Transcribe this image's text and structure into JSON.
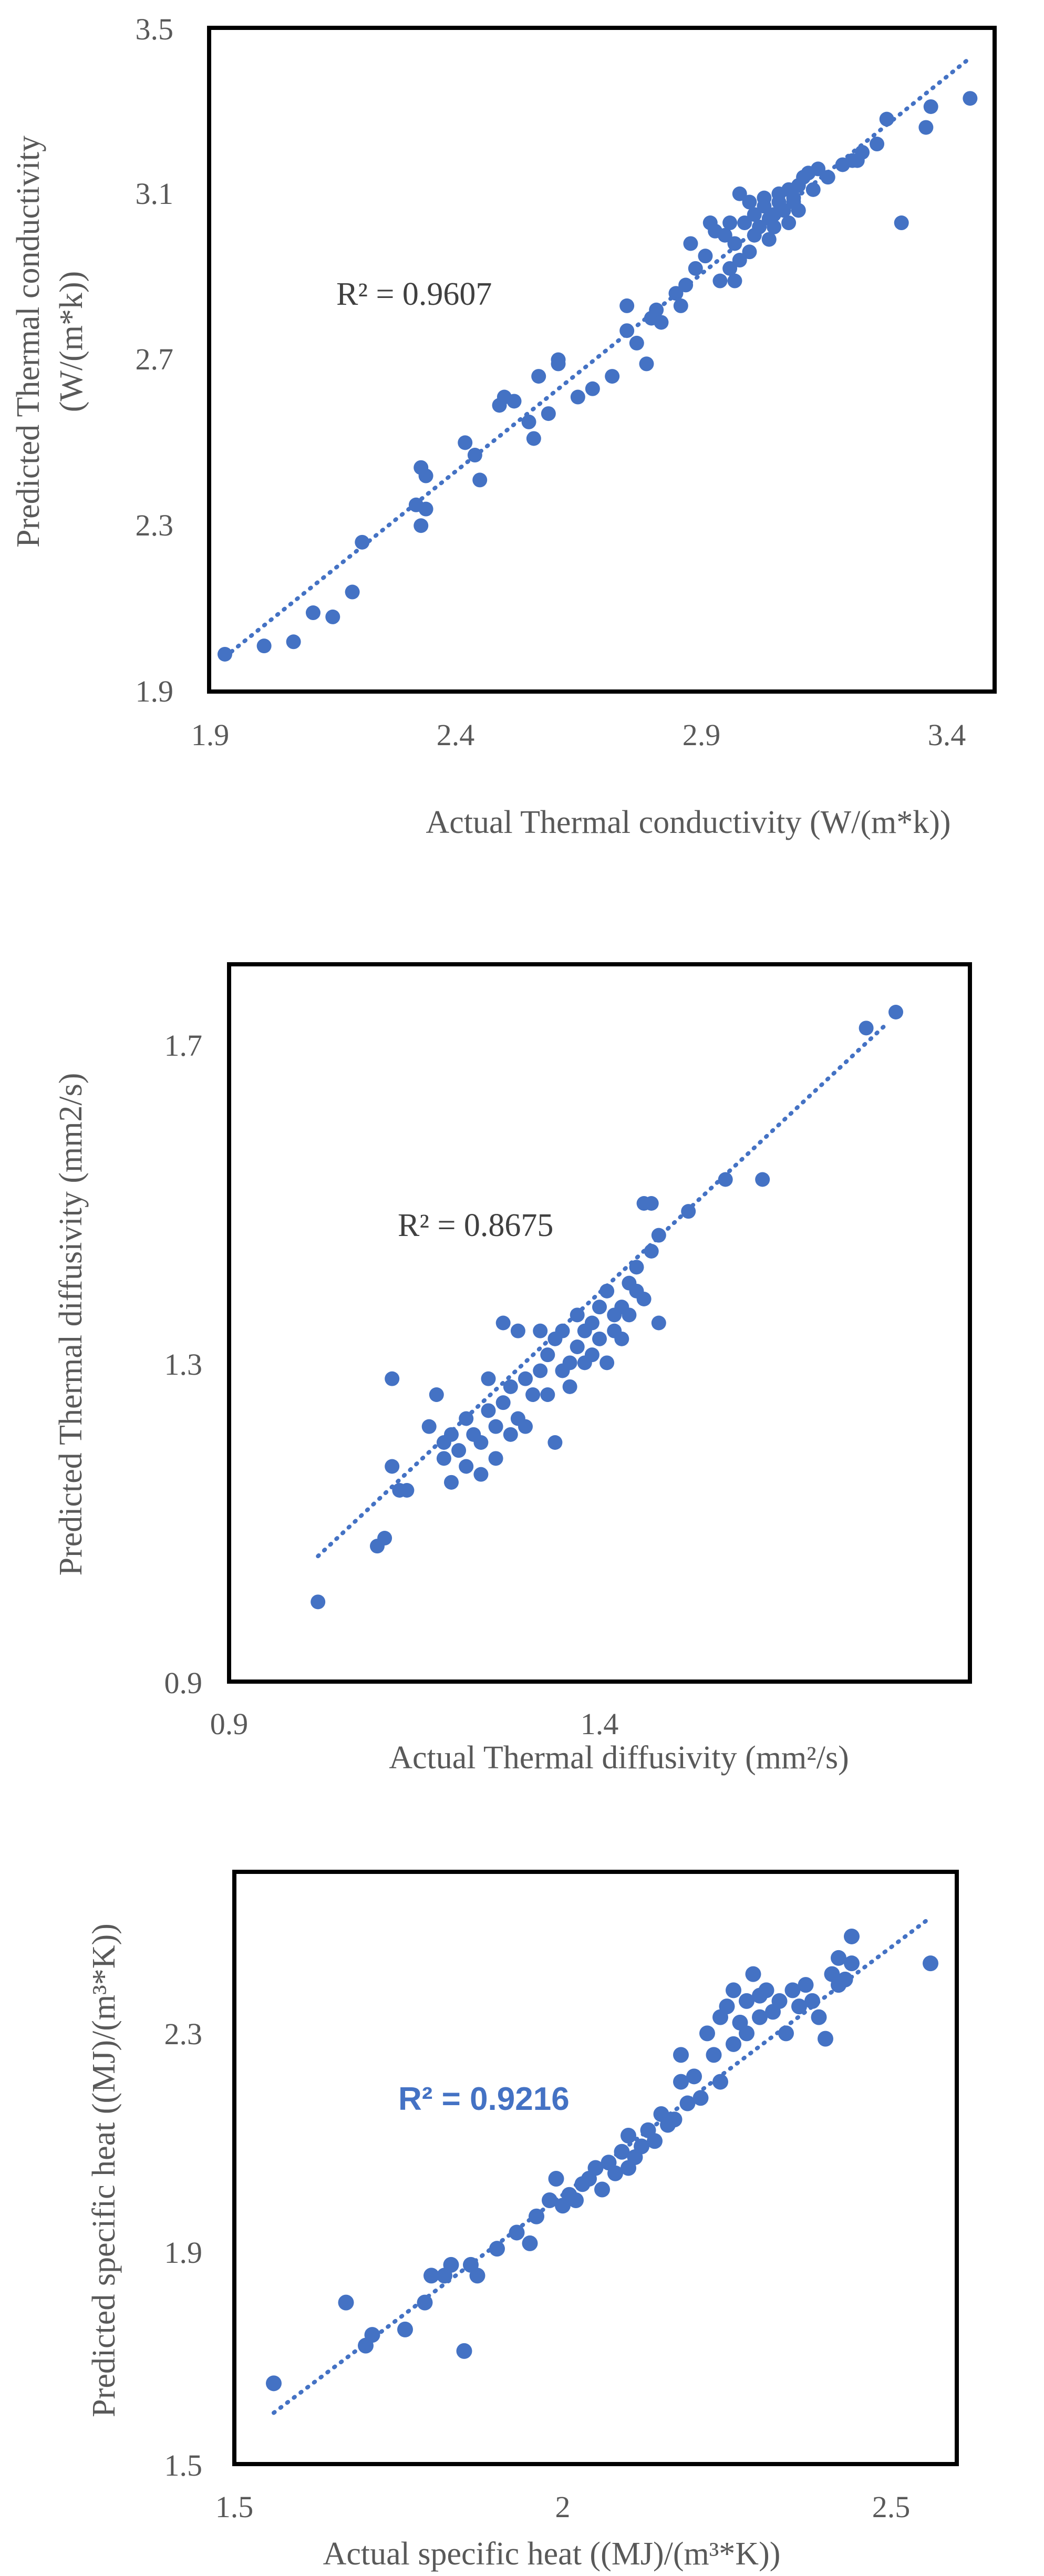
{
  "accent_color": "#4472C4",
  "chart_data": [
    {
      "type": "scatter",
      "xlabel": "Actual Thermal conductivity (W/(m*k))",
      "ylabel_line1": "Predicted Thermal conductivity",
      "ylabel_line2": "(W/(m*k))",
      "xlim": [
        1.9,
        3.5
      ],
      "ylim": [
        1.9,
        3.5
      ],
      "x_ticks": [
        "1.9",
        "2.4",
        "2.9",
        "3.4"
      ],
      "y_ticks": [
        "1.9",
        "2.3",
        "2.7",
        "3.1",
        "3.5"
      ],
      "r2_label": "R² = 0.9607",
      "trendline": {
        "x_start": 1.93,
        "x_end": 3.45,
        "slope": 0.95,
        "intercept": 0.15
      },
      "points": [
        [
          1.93,
          1.99
        ],
        [
          2.01,
          2.01
        ],
        [
          2.07,
          2.02
        ],
        [
          2.11,
          2.09
        ],
        [
          2.15,
          2.08
        ],
        [
          2.19,
          2.14
        ],
        [
          2.21,
          2.26
        ],
        [
          2.32,
          2.35
        ],
        [
          2.34,
          2.34
        ],
        [
          2.33,
          2.3
        ],
        [
          2.33,
          2.44
        ],
        [
          2.34,
          2.42
        ],
        [
          2.45,
          2.41
        ],
        [
          2.44,
          2.47
        ],
        [
          2.42,
          2.5
        ],
        [
          2.49,
          2.59
        ],
        [
          2.5,
          2.61
        ],
        [
          2.52,
          2.6
        ],
        [
          2.55,
          2.55
        ],
        [
          2.56,
          2.51
        ],
        [
          2.57,
          2.66
        ],
        [
          2.59,
          2.57
        ],
        [
          2.61,
          2.69
        ],
        [
          2.61,
          2.7
        ],
        [
          2.65,
          2.61
        ],
        [
          2.68,
          2.63
        ],
        [
          2.72,
          2.66
        ],
        [
          2.75,
          2.83
        ],
        [
          2.75,
          2.77
        ],
        [
          2.77,
          2.74
        ],
        [
          2.79,
          2.69
        ],
        [
          2.8,
          2.8
        ],
        [
          2.81,
          2.82
        ],
        [
          2.82,
          2.79
        ],
        [
          2.85,
          2.86
        ],
        [
          2.86,
          2.83
        ],
        [
          2.87,
          2.88
        ],
        [
          2.88,
          2.98
        ],
        [
          2.89,
          2.92
        ],
        [
          2.91,
          2.95
        ],
        [
          2.92,
          3.03
        ],
        [
          2.93,
          3.01
        ],
        [
          2.94,
          2.89
        ],
        [
          2.95,
          3.0
        ],
        [
          2.96,
          3.03
        ],
        [
          2.96,
          2.92
        ],
        [
          2.97,
          2.89
        ],
        [
          2.97,
          2.98
        ],
        [
          2.98,
          3.1
        ],
        [
          2.98,
          2.94
        ],
        [
          2.99,
          3.03
        ],
        [
          3.0,
          2.96
        ],
        [
          3.0,
          3.08
        ],
        [
          3.01,
          3.0
        ],
        [
          3.01,
          3.05
        ],
        [
          3.02,
          3.02
        ],
        [
          3.03,
          3.07
        ],
        [
          3.03,
          3.09
        ],
        [
          3.04,
          3.04
        ],
        [
          3.04,
          2.99
        ],
        [
          3.05,
          3.05
        ],
        [
          3.05,
          3.02
        ],
        [
          3.06,
          3.08
        ],
        [
          3.06,
          3.1
        ],
        [
          3.07,
          3.06
        ],
        [
          3.08,
          3.11
        ],
        [
          3.08,
          3.03
        ],
        [
          3.09,
          3.08
        ],
        [
          3.09,
          3.09
        ],
        [
          3.1,
          3.12
        ],
        [
          3.1,
          3.06
        ],
        [
          3.11,
          3.14
        ],
        [
          3.12,
          3.15
        ],
        [
          3.13,
          3.11
        ],
        [
          3.14,
          3.16
        ],
        [
          3.16,
          3.14
        ],
        [
          3.19,
          3.17
        ],
        [
          3.21,
          3.18
        ],
        [
          3.22,
          3.18
        ],
        [
          3.23,
          3.2
        ],
        [
          3.26,
          3.22
        ],
        [
          3.28,
          3.28
        ],
        [
          3.31,
          3.03
        ],
        [
          3.36,
          3.26
        ],
        [
          3.37,
          3.31
        ],
        [
          3.45,
          3.33
        ]
      ]
    },
    {
      "type": "scatter",
      "xlabel": "Actual Thermal diffusivity (mm²/s)",
      "ylabel": "Predicted Thermal diffusivity (mm2/s)",
      "xlim": [
        0.9,
        1.9
      ],
      "ylim": [
        0.9,
        1.8
      ],
      "x_ticks": [
        "0.9",
        "1.4"
      ],
      "y_ticks": [
        "0.9",
        "1.3",
        "1.7"
      ],
      "r2_label": "R² = 0.8675",
      "trendline": {
        "x_start": 1.02,
        "x_end": 1.79,
        "slope": 0.87,
        "intercept": 0.17
      },
      "points": [
        [
          1.02,
          1.0
        ],
        [
          1.1,
          1.07
        ],
        [
          1.11,
          1.08
        ],
        [
          1.12,
          1.17
        ],
        [
          1.12,
          1.28
        ],
        [
          1.13,
          1.14
        ],
        [
          1.14,
          1.14
        ],
        [
          1.17,
          1.22
        ],
        [
          1.18,
          1.26
        ],
        [
          1.19,
          1.18
        ],
        [
          1.19,
          1.2
        ],
        [
          1.2,
          1.15
        ],
        [
          1.2,
          1.21
        ],
        [
          1.21,
          1.19
        ],
        [
          1.22,
          1.23
        ],
        [
          1.22,
          1.17
        ],
        [
          1.23,
          1.21
        ],
        [
          1.24,
          1.2
        ],
        [
          1.24,
          1.16
        ],
        [
          1.25,
          1.24
        ],
        [
          1.25,
          1.28
        ],
        [
          1.26,
          1.18
        ],
        [
          1.26,
          1.22
        ],
        [
          1.27,
          1.25
        ],
        [
          1.27,
          1.35
        ],
        [
          1.28,
          1.21
        ],
        [
          1.28,
          1.27
        ],
        [
          1.29,
          1.23
        ],
        [
          1.29,
          1.34
        ],
        [
          1.3,
          1.28
        ],
        [
          1.3,
          1.22
        ],
        [
          1.31,
          1.26
        ],
        [
          1.32,
          1.34
        ],
        [
          1.32,
          1.29
        ],
        [
          1.33,
          1.26
        ],
        [
          1.33,
          1.31
        ],
        [
          1.34,
          1.2
        ],
        [
          1.34,
          1.33
        ],
        [
          1.35,
          1.29
        ],
        [
          1.35,
          1.34
        ],
        [
          1.36,
          1.3
        ],
        [
          1.36,
          1.27
        ],
        [
          1.37,
          1.32
        ],
        [
          1.37,
          1.36
        ],
        [
          1.38,
          1.3
        ],
        [
          1.38,
          1.34
        ],
        [
          1.39,
          1.35
        ],
        [
          1.39,
          1.31
        ],
        [
          1.4,
          1.37
        ],
        [
          1.4,
          1.33
        ],
        [
          1.41,
          1.3
        ],
        [
          1.41,
          1.39
        ],
        [
          1.42,
          1.36
        ],
        [
          1.42,
          1.34
        ],
        [
          1.43,
          1.37
        ],
        [
          1.43,
          1.33
        ],
        [
          1.44,
          1.4
        ],
        [
          1.44,
          1.36
        ],
        [
          1.45,
          1.39
        ],
        [
          1.45,
          1.42
        ],
        [
          1.46,
          1.38
        ],
        [
          1.46,
          1.5
        ],
        [
          1.47,
          1.5
        ],
        [
          1.47,
          1.44
        ],
        [
          1.48,
          1.35
        ],
        [
          1.48,
          1.46
        ],
        [
          1.52,
          1.49
        ],
        [
          1.57,
          1.53
        ],
        [
          1.62,
          1.53
        ],
        [
          1.76,
          1.72
        ],
        [
          1.8,
          1.74
        ]
      ]
    },
    {
      "type": "scatter",
      "xlabel": "Actual specific heat ((MJ)/(m³*K))",
      "ylabel": "Predicted specific heat ((MJ)/(m³*K))",
      "xlim": [
        1.5,
        2.6
      ],
      "ylim": [
        1.5,
        2.6
      ],
      "x_ticks": [
        "1.5",
        "2",
        "2.5"
      ],
      "y_ticks": [
        "1.5",
        "1.9",
        "2.3"
      ],
      "r2_label": "R² = 0.9216",
      "trendline": {
        "x_start": 1.56,
        "x_end": 2.56,
        "slope": 0.92,
        "intercept": 0.16
      },
      "points": [
        [
          1.56,
          1.65
        ],
        [
          1.67,
          1.8
        ],
        [
          1.7,
          1.72
        ],
        [
          1.71,
          1.74
        ],
        [
          1.76,
          1.75
        ],
        [
          1.79,
          1.8
        ],
        [
          1.8,
          1.85
        ],
        [
          1.82,
          1.85
        ],
        [
          1.83,
          1.87
        ],
        [
          1.85,
          1.71
        ],
        [
          1.86,
          1.87
        ],
        [
          1.87,
          1.85
        ],
        [
          1.9,
          1.9
        ],
        [
          1.93,
          1.93
        ],
        [
          1.95,
          1.91
        ],
        [
          1.96,
          1.96
        ],
        [
          1.98,
          1.99
        ],
        [
          1.99,
          2.03
        ],
        [
          2.0,
          1.98
        ],
        [
          2.01,
          2.0
        ],
        [
          2.02,
          1.99
        ],
        [
          2.03,
          2.02
        ],
        [
          2.04,
          2.03
        ],
        [
          2.05,
          2.05
        ],
        [
          2.06,
          2.01
        ],
        [
          2.07,
          2.06
        ],
        [
          2.08,
          2.04
        ],
        [
          2.09,
          2.08
        ],
        [
          2.1,
          2.05
        ],
        [
          2.1,
          2.11
        ],
        [
          2.11,
          2.07
        ],
        [
          2.12,
          2.09
        ],
        [
          2.13,
          2.12
        ],
        [
          2.14,
          2.1
        ],
        [
          2.15,
          2.15
        ],
        [
          2.16,
          2.13
        ],
        [
          2.17,
          2.14
        ],
        [
          2.18,
          2.21
        ],
        [
          2.18,
          2.26
        ],
        [
          2.19,
          2.17
        ],
        [
          2.2,
          2.22
        ],
        [
          2.21,
          2.18
        ],
        [
          2.22,
          2.3
        ],
        [
          2.23,
          2.26
        ],
        [
          2.24,
          2.21
        ],
        [
          2.24,
          2.33
        ],
        [
          2.25,
          2.35
        ],
        [
          2.26,
          2.28
        ],
        [
          2.26,
          2.38
        ],
        [
          2.27,
          2.32
        ],
        [
          2.28,
          2.36
        ],
        [
          2.28,
          2.3
        ],
        [
          2.29,
          2.41
        ],
        [
          2.3,
          2.33
        ],
        [
          2.3,
          2.37
        ],
        [
          2.31,
          2.38
        ],
        [
          2.32,
          2.34
        ],
        [
          2.33,
          2.36
        ],
        [
          2.34,
          2.3
        ],
        [
          2.35,
          2.38
        ],
        [
          2.36,
          2.35
        ],
        [
          2.37,
          2.39
        ],
        [
          2.38,
          2.36
        ],
        [
          2.39,
          2.33
        ],
        [
          2.4,
          2.29
        ],
        [
          2.41,
          2.41
        ],
        [
          2.42,
          2.44
        ],
        [
          2.42,
          2.39
        ],
        [
          2.43,
          2.4
        ],
        [
          2.44,
          2.43
        ],
        [
          2.44,
          2.48
        ],
        [
          2.56,
          2.43
        ]
      ]
    }
  ]
}
